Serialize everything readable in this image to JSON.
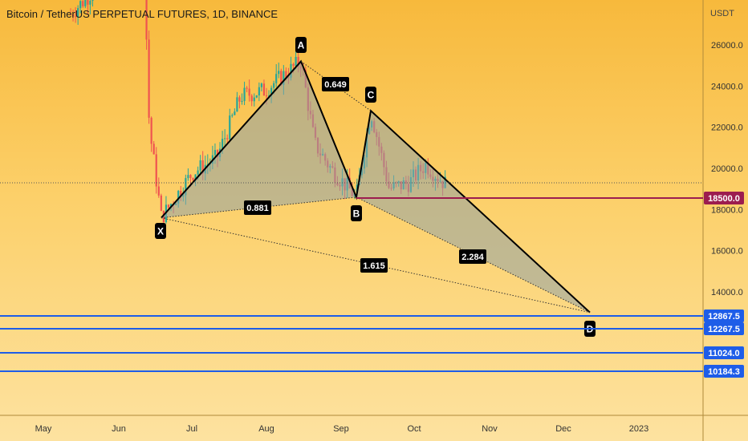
{
  "header": {
    "title": "Bitcoin / TetherUS PERPETUAL FUTURES, 1D, BINANCE"
  },
  "chart_data": {
    "type": "candlestick",
    "y_unit": "USDT",
    "ylim": [
      8000,
      28000
    ],
    "y_ticks": [
      {
        "value": 26000,
        "label": "26000.0"
      },
      {
        "value": 24000,
        "label": "24000.0"
      },
      {
        "value": 22000,
        "label": "22000.0"
      },
      {
        "value": 20000,
        "label": "20000.0"
      },
      {
        "value": 18000,
        "label": "18000.0"
      },
      {
        "value": 16000,
        "label": "16000.0"
      },
      {
        "value": 14000,
        "label": "14000.0"
      }
    ],
    "x_ticks": [
      "May",
      "Jun",
      "Jul",
      "Aug",
      "Sep",
      "Oct",
      "Nov",
      "Dec",
      "2023"
    ],
    "pattern_points": [
      {
        "label": "X",
        "value": 17600
      },
      {
        "label": "A",
        "value": 25200
      },
      {
        "label": "B",
        "value": 18600
      },
      {
        "label": "C",
        "value": 22800
      },
      {
        "label": "D",
        "value": 13000
      }
    ],
    "ratios": [
      {
        "label": "0.649",
        "from": "A",
        "to": "C"
      },
      {
        "label": "0.881",
        "from": "X",
        "to": "B"
      },
      {
        "label": "1.615",
        "from": "X",
        "to": "D"
      },
      {
        "label": "2.284",
        "from": "B",
        "to": "D"
      }
    ],
    "horizontal_levels": [
      {
        "value": 18500,
        "label": "18500.0",
        "color": "#9c1d4f"
      },
      {
        "value": 12867.5,
        "label": "12867.5",
        "color": "#1e5de8"
      },
      {
        "value": 12267.5,
        "label": "12267.5",
        "color": "#1e5de8"
      },
      {
        "value": 11024,
        "label": "11024.0",
        "color": "#1e5de8"
      },
      {
        "value": 10184.3,
        "label": "10184.3",
        "color": "#1e5de8"
      }
    ],
    "current_price_line": 19300,
    "colors": {
      "up": "#26a69a",
      "down": "#ef5350",
      "pattern_fill": "#8fa3a8",
      "label_bg": "#000000"
    }
  }
}
